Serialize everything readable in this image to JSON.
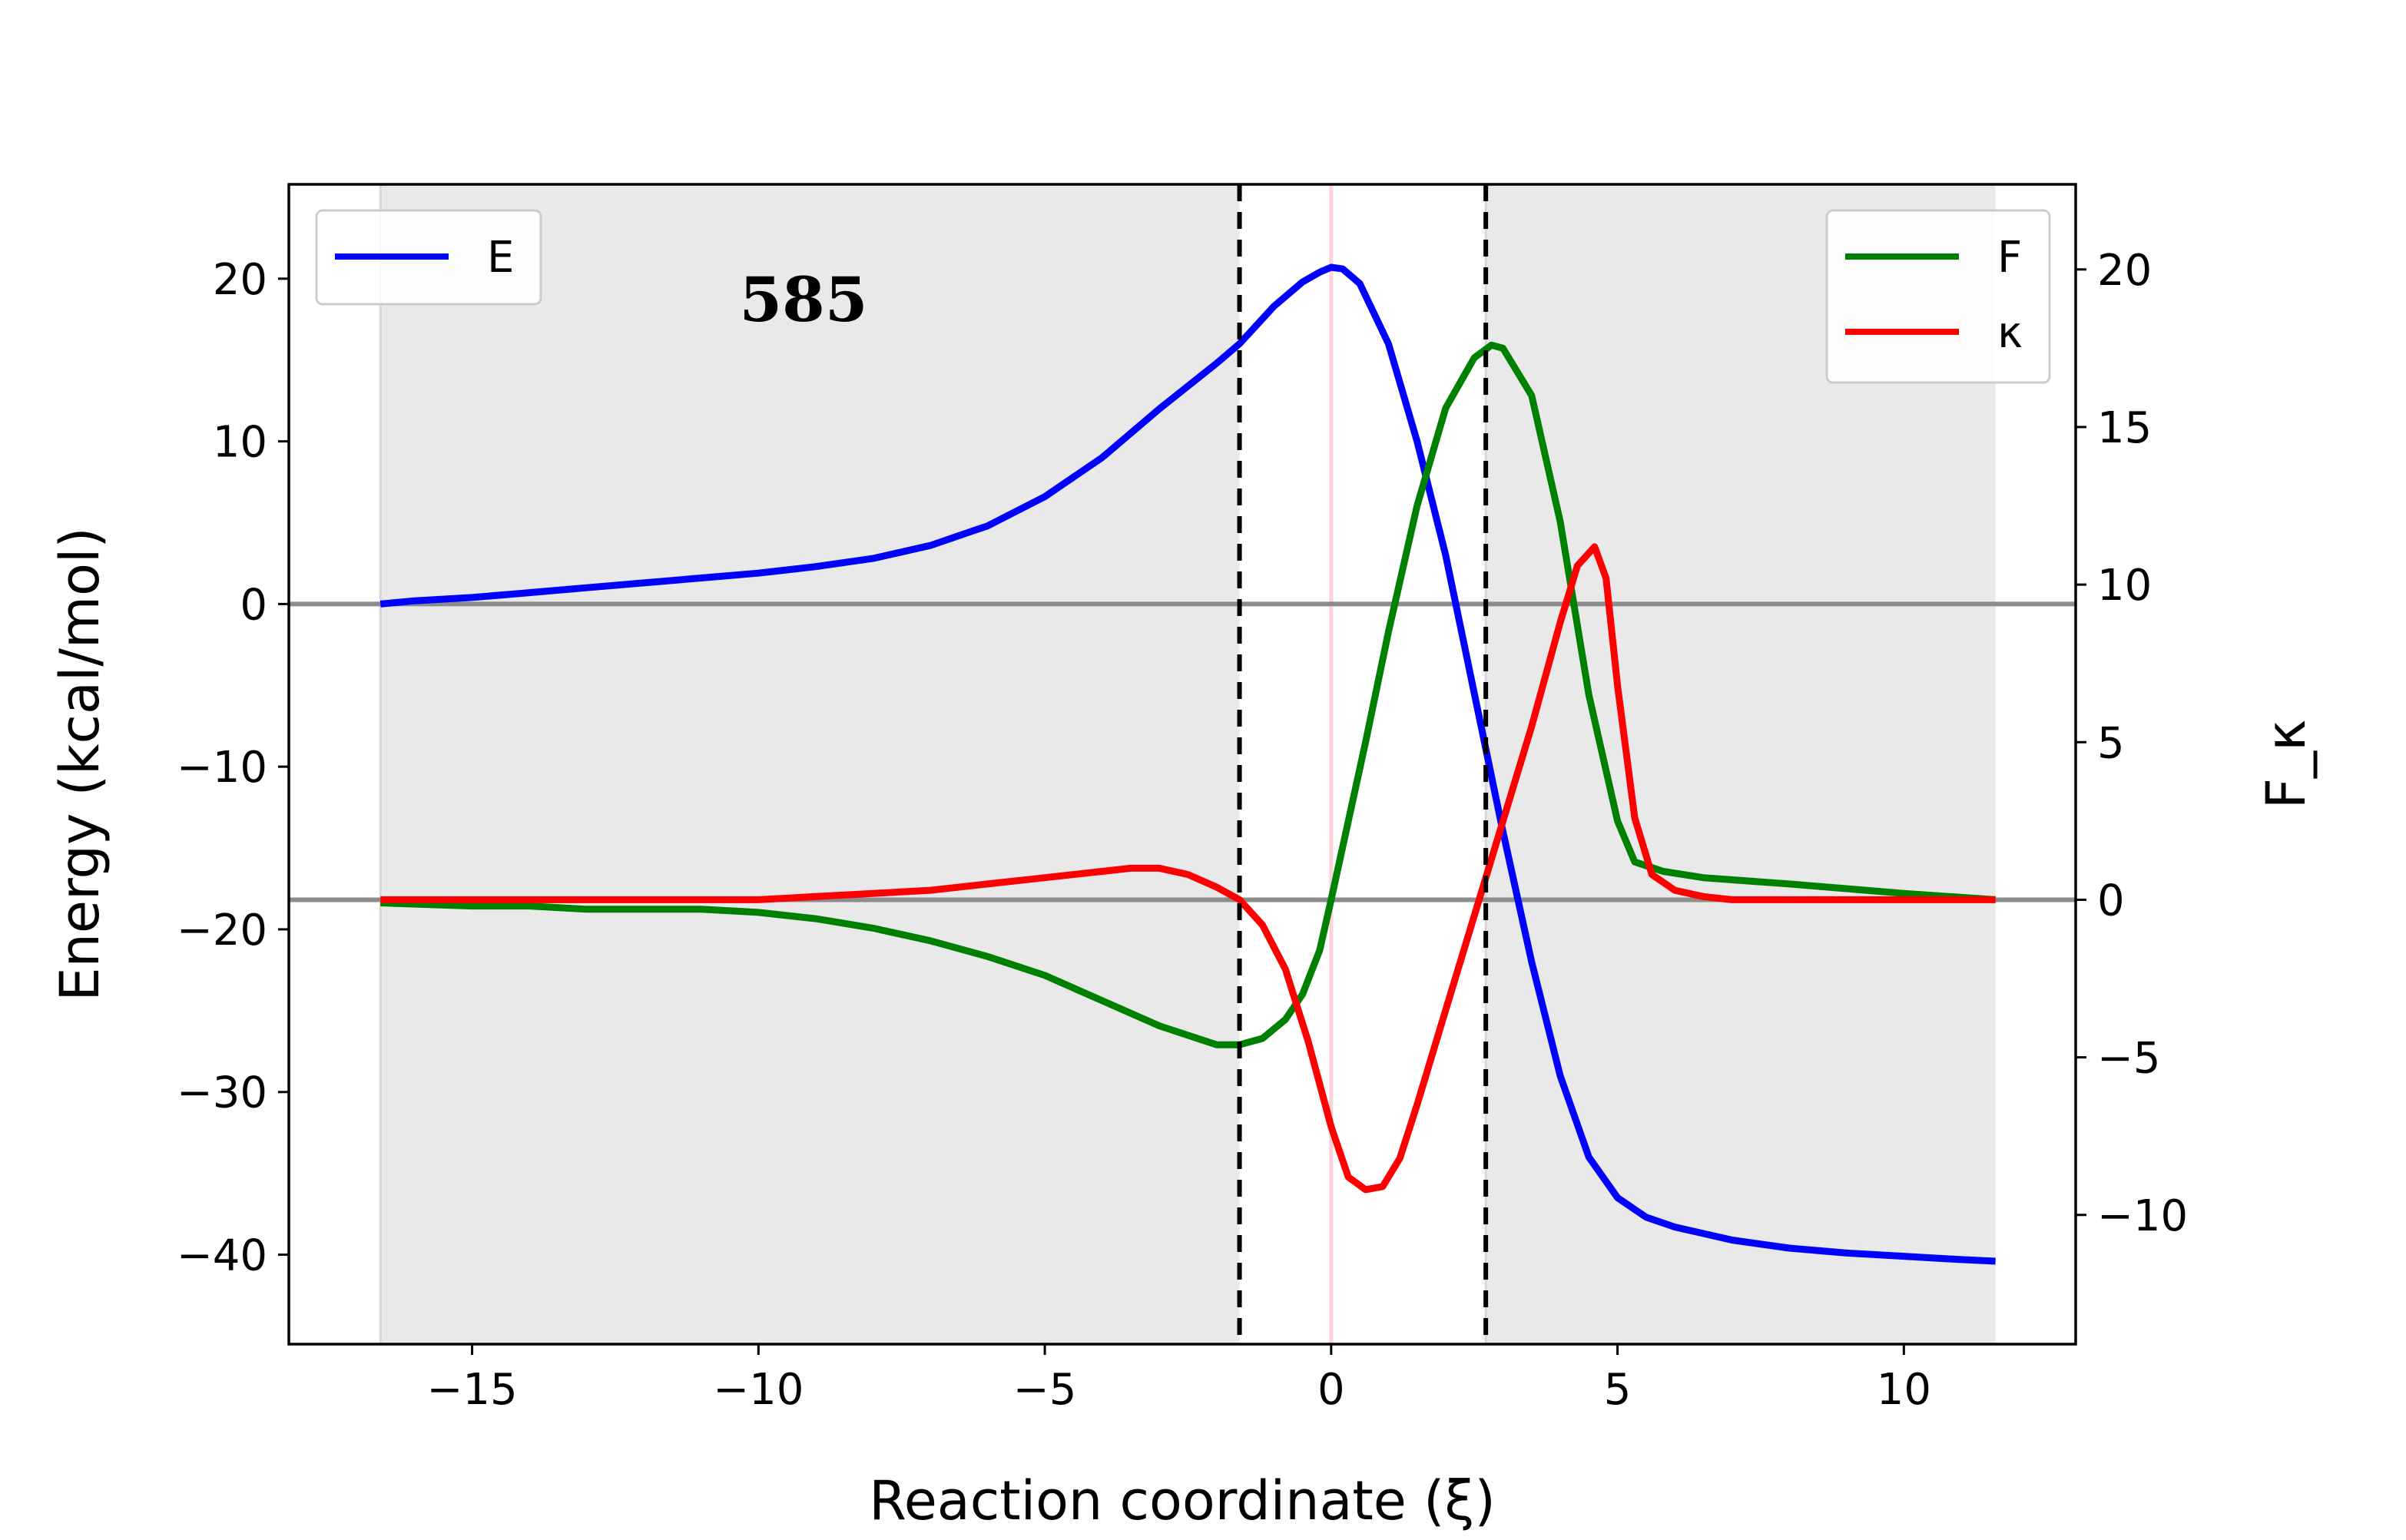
{
  "chart_data": {
    "type": "line",
    "xlabel": "Reaction coordinate (ξ)",
    "ylabel": "Energy (kcal/mol)",
    "y2label": "F_κ",
    "annotation": "585",
    "xlim": [
      -18.2,
      13.0
    ],
    "ylim": [
      -45.5,
      25.8
    ],
    "y2lim": [
      -14.1,
      22.7
    ],
    "x_ticks": [
      -15,
      -10,
      -5,
      0,
      5,
      10
    ],
    "y_ticks": [
      20,
      10,
      0,
      -10,
      -20,
      -30,
      -40
    ],
    "y2_ticks": [
      20,
      15,
      10,
      5,
      0,
      -5,
      -10
    ],
    "shaded_regions": [
      [
        -16.6,
        -1.6
      ],
      [
        2.7,
        11.6
      ]
    ],
    "vertical_dashed_lines": [
      -1.6,
      2.7
    ],
    "vertical_highlight_line": 0.0,
    "horizontal_reference_lines": {
      "left_axis": 0,
      "right_axis": 0
    },
    "legend_left": {
      "position": "upper left",
      "entries": [
        "E"
      ]
    },
    "legend_right": {
      "position": "upper right",
      "entries": [
        "F",
        "κ"
      ]
    },
    "colors": {
      "E": "#0000ff",
      "F": "#008000",
      "kappa": "#ff0000",
      "shade": "#e9e9e9",
      "reference": "#8c8c8c",
      "highlight": "#ffc0cb"
    },
    "series": [
      {
        "name": "E",
        "axis": "left",
        "x": [
          -16.6,
          -16,
          -15,
          -14,
          -13,
          -12,
          -11,
          -10,
          -9,
          -8,
          -7,
          -6,
          -5,
          -4,
          -3,
          -2,
          -1.6,
          -1,
          -0.5,
          -0.2,
          0,
          0.2,
          0.5,
          1,
          1.5,
          2,
          2.5,
          3,
          3.5,
          4,
          4.5,
          5,
          5.5,
          6,
          7,
          8,
          9,
          10,
          11,
          11.6
        ],
        "y": [
          0,
          0.2,
          0.4,
          0.7,
          1.0,
          1.3,
          1.6,
          1.9,
          2.3,
          2.8,
          3.6,
          4.8,
          6.6,
          9.0,
          12.0,
          14.8,
          16.0,
          18.3,
          19.8,
          20.4,
          20.7,
          20.6,
          19.7,
          16.0,
          10.0,
          3.0,
          -5.5,
          -14.0,
          -22.0,
          -29.0,
          -34.0,
          -36.5,
          -37.7,
          -38.3,
          -39.1,
          -39.6,
          -39.9,
          -40.1,
          -40.3,
          -40.4
        ]
      },
      {
        "name": "F",
        "axis": "right",
        "x": [
          -16.6,
          -15,
          -14,
          -13,
          -12,
          -11,
          -10,
          -9,
          -8,
          -7,
          -6,
          -5,
          -4,
          -3,
          -2,
          -1.6,
          -1.2,
          -0.8,
          -0.5,
          -0.2,
          0,
          0.3,
          0.6,
          1,
          1.5,
          2,
          2.5,
          2.8,
          3,
          3.5,
          4,
          4.5,
          5,
          5.3,
          5.8,
          6.5,
          8,
          10,
          11.6
        ],
        "y": [
          -0.1,
          -0.2,
          -0.2,
          -0.3,
          -0.3,
          -0.3,
          -0.4,
          -0.6,
          -0.9,
          -1.3,
          -1.8,
          -2.4,
          -3.2,
          -4.0,
          -4.6,
          -4.6,
          -4.4,
          -3.8,
          -3.0,
          -1.6,
          0,
          2.5,
          5.0,
          8.5,
          12.5,
          15.6,
          17.2,
          17.6,
          17.5,
          16.0,
          12.0,
          6.5,
          2.5,
          1.2,
          0.9,
          0.7,
          0.5,
          0.2,
          0
        ]
      },
      {
        "name": "κ",
        "axis": "right",
        "x": [
          -16.6,
          -15,
          -14,
          -13,
          -12,
          -11,
          -10,
          -9,
          -8,
          -7,
          -6,
          -5,
          -4,
          -3.5,
          -3,
          -2.5,
          -2,
          -1.6,
          -1.2,
          -0.8,
          -0.4,
          0,
          0.3,
          0.6,
          0.9,
          1.2,
          1.5,
          2,
          2.5,
          3,
          3.5,
          4,
          4.3,
          4.6,
          4.8,
          5,
          5.3,
          5.6,
          6,
          6.5,
          7,
          8,
          10,
          11.6
        ],
        "y": [
          0,
          0,
          0,
          0,
          0,
          0,
          0,
          0.1,
          0.2,
          0.3,
          0.5,
          0.7,
          0.9,
          1.0,
          1.0,
          0.8,
          0.4,
          0,
          -0.8,
          -2.2,
          -4.5,
          -7.2,
          -8.8,
          -9.2,
          -9.1,
          -8.2,
          -6.5,
          -3.5,
          -0.5,
          2.5,
          5.5,
          8.8,
          10.6,
          11.2,
          10.2,
          6.8,
          2.6,
          0.8,
          0.3,
          0.1,
          0,
          0,
          0,
          0
        ]
      }
    ]
  }
}
